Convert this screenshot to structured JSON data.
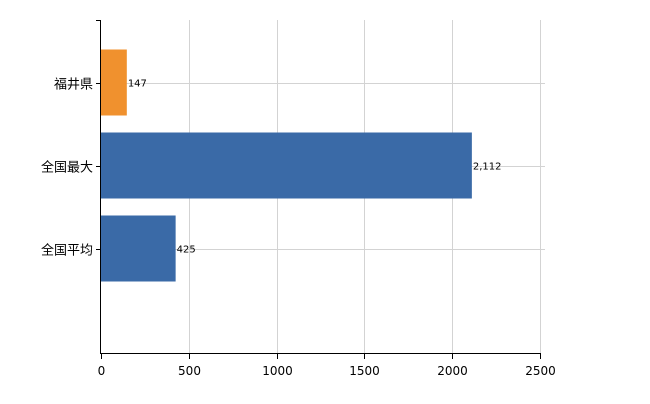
{
  "chart_data": {
    "type": "bar",
    "orientation": "horizontal",
    "categories": [
      "福井県",
      "全国最大",
      "全国平均"
    ],
    "values": [
      147,
      2112,
      425
    ],
    "value_labels": [
      "147",
      "2,112",
      "425"
    ],
    "bar_colors": [
      "#f0912e",
      "#3a6aa7",
      "#3a6aa7"
    ],
    "xlim": [
      0,
      2500
    ],
    "x_ticks": [
      0,
      500,
      1000,
      1500,
      2000,
      2500
    ],
    "x_tick_labels": [
      "0",
      "500",
      "1000",
      "1500",
      "2000",
      "2500"
    ],
    "grid": true,
    "legend": "none",
    "title": "",
    "xlabel": "",
    "ylabel": ""
  }
}
